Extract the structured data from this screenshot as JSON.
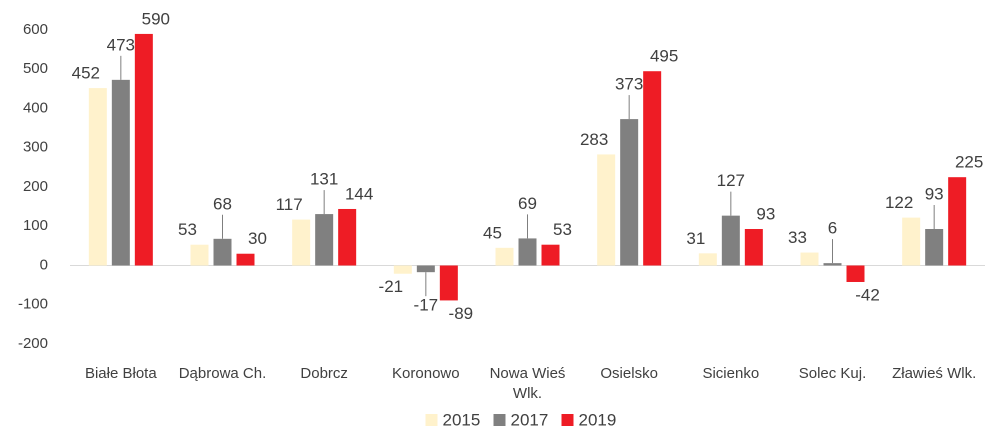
{
  "chart_data": {
    "type": "bar",
    "categories": [
      "Białe Błota",
      "Dąbrowa Ch.",
      "Dobrcz",
      "Koronowo",
      "Nowa Wieś Wlk.",
      "Osielsko",
      "Sicienko",
      "Solec Kuj.",
      "Zławieś Wlk."
    ],
    "series": [
      {
        "name": "2015",
        "color": "#fff2cc",
        "values": [
          452,
          53,
          117,
          -21,
          45,
          283,
          31,
          33,
          122
        ]
      },
      {
        "name": "2017",
        "color": "#808080",
        "values": [
          473,
          68,
          131,
          -17,
          69,
          373,
          127,
          6,
          93
        ]
      },
      {
        "name": "2019",
        "color": "#ee1c25",
        "values": [
          590,
          30,
          144,
          -89,
          53,
          495,
          93,
          -42,
          225
        ]
      }
    ],
    "ylim": [
      -200,
      600
    ],
    "yticks": [
      -200,
      -100,
      0,
      100,
      200,
      300,
      400,
      500,
      600
    ],
    "grid": false,
    "legend": "bottom"
  }
}
